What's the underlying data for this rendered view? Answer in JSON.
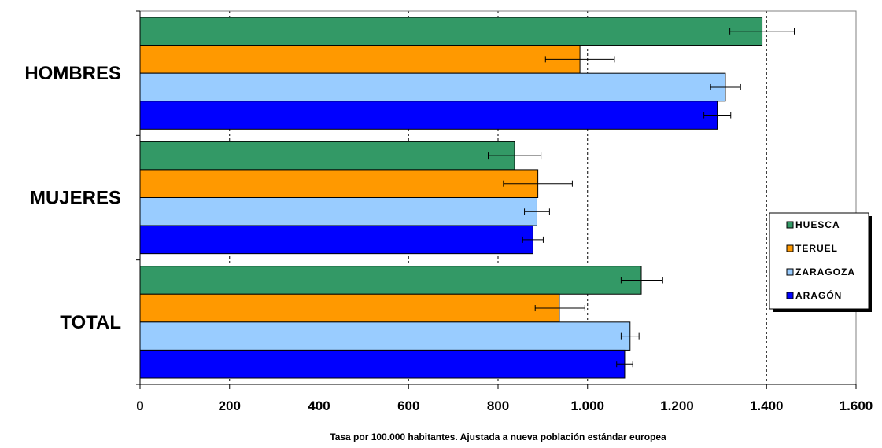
{
  "chart_data": {
    "type": "bar",
    "orientation": "horizontal",
    "categories": [
      "HOMBRES",
      "MUJERES",
      "TOTAL"
    ],
    "series": [
      {
        "name": "HUESCA",
        "color": "#339966",
        "values": [
          1390,
          837,
          1120
        ],
        "err_low": [
          1318,
          778,
          1075
        ],
        "err_high": [
          1462,
          896,
          1168
        ]
      },
      {
        "name": "TERUEL",
        "color": "#ff9900",
        "values": [
          983,
          889,
          937
        ],
        "err_low": [
          906,
          812,
          883
        ],
        "err_high": [
          1060,
          966,
          994
        ]
      },
      {
        "name": "ZARAGOZA",
        "color": "#99ccff",
        "values": [
          1308,
          887,
          1095
        ],
        "err_low": [
          1275,
          859,
          1075
        ],
        "err_high": [
          1342,
          915,
          1115
        ]
      },
      {
        "name": "ARAGÓN",
        "color": "#0000ff",
        "values": [
          1290,
          878,
          1083
        ],
        "err_low": [
          1260,
          855,
          1065
        ],
        "err_high": [
          1320,
          901,
          1101
        ]
      }
    ],
    "xlim": [
      0,
      1600
    ],
    "x_ticks": [
      0,
      200,
      400,
      600,
      800,
      1000,
      1200,
      1400,
      1600
    ],
    "x_tick_labels": [
      "0",
      "200",
      "400",
      "600",
      "800",
      "1.000",
      "1.200",
      "1.400",
      "1.600"
    ],
    "xlabel": "Tasa por 100.000 habitantes. Ajustada a nueva población estándar europea",
    "ylabel": "",
    "title": "",
    "grid": "vertical dashed",
    "legend_position": "right"
  }
}
